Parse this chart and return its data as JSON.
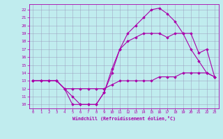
{
  "xlabel": "Windchill (Refroidissement éolien,°C)",
  "bg_color": "#c0ecee",
  "line_color": "#aa00aa",
  "grid_color": "#9999bb",
  "xlim": [
    -0.5,
    23.5
  ],
  "ylim": [
    9.5,
    22.7
  ],
  "xticks": [
    0,
    1,
    2,
    3,
    4,
    5,
    6,
    7,
    8,
    9,
    10,
    11,
    12,
    13,
    14,
    15,
    16,
    17,
    18,
    19,
    20,
    21,
    22,
    23
  ],
  "yticks": [
    10,
    11,
    12,
    13,
    14,
    15,
    16,
    17,
    18,
    19,
    20,
    21,
    22
  ],
  "lines": [
    {
      "x": [
        0,
        1,
        2,
        3,
        4,
        5,
        6,
        7,
        8,
        9,
        10,
        11,
        12,
        13,
        14,
        15,
        16,
        17,
        18,
        19,
        20,
        21,
        22,
        23
      ],
      "y": [
        13,
        13,
        13,
        13,
        12,
        10,
        10,
        10,
        10,
        11.5,
        14,
        17,
        19,
        20,
        21,
        22,
        22.2,
        21.5,
        20.5,
        19,
        17,
        15.5,
        14,
        13.5
      ]
    },
    {
      "x": [
        0,
        1,
        2,
        3,
        4,
        5,
        6,
        7,
        8,
        9,
        10,
        11,
        12,
        13,
        14,
        15,
        16,
        17,
        18,
        19,
        20,
        21,
        22,
        23
      ],
      "y": [
        13,
        13,
        13,
        13,
        12,
        11,
        10,
        10,
        10,
        11.5,
        14.5,
        17,
        18,
        18.5,
        19,
        19,
        19,
        18.5,
        19,
        19,
        19,
        16.5,
        17,
        13.5
      ]
    },
    {
      "x": [
        0,
        1,
        2,
        3,
        4,
        5,
        6,
        7,
        8,
        9,
        10,
        11,
        12,
        13,
        14,
        15,
        16,
        17,
        18,
        19,
        20,
        21,
        22,
        23
      ],
      "y": [
        13,
        13,
        13,
        13,
        12,
        12,
        12,
        12,
        12,
        12,
        12.5,
        13,
        13,
        13,
        13,
        13,
        13.5,
        13.5,
        13.5,
        14,
        14,
        14,
        14,
        13.5
      ]
    }
  ]
}
